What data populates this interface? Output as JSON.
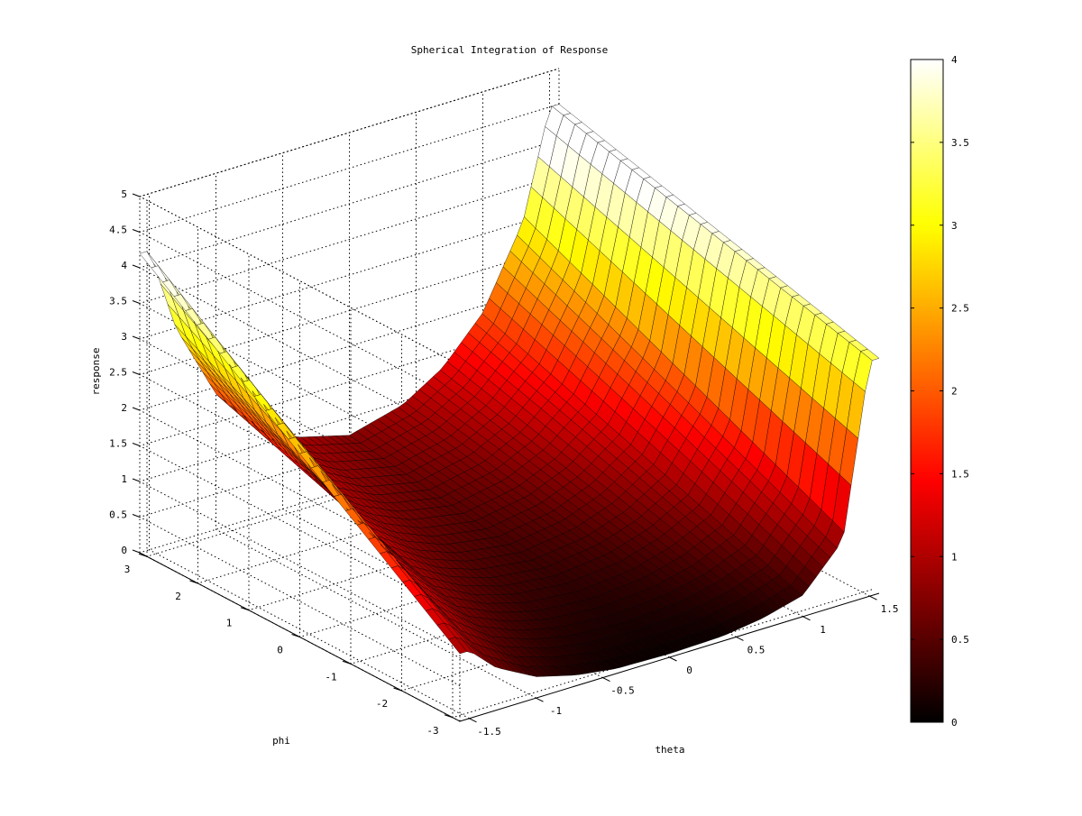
{
  "chart_data": {
    "type": "surface",
    "title": "Spherical Integration of Response",
    "xlabel": "theta",
    "ylabel": "phi",
    "zlabel": "response",
    "xlim": [
      -1.5708,
      1.5708
    ],
    "ylim": [
      -3.1416,
      3.1416
    ],
    "zlim": [
      0,
      5
    ],
    "x_ticks": [
      -1.5,
      -1,
      -0.5,
      0,
      0.5,
      1,
      1.5
    ],
    "x_tick_labels": [
      "-1.5",
      "-1",
      "-0.5",
      "0",
      "0.5",
      "1",
      "1.5"
    ],
    "y_ticks": [
      -3,
      -2,
      -1,
      0,
      1,
      2,
      3
    ],
    "y_tick_labels": [
      "-3",
      "-2",
      "-1",
      "0",
      "1",
      "2",
      "3"
    ],
    "z_ticks": [
      0,
      0.5,
      1,
      1.5,
      2,
      2.5,
      3,
      3.5,
      4,
      4.5,
      5
    ],
    "z_tick_labels": [
      "0",
      "0.5",
      "1",
      "1.5",
      "2",
      "2.5",
      "3",
      "3.5",
      "4",
      "4.5",
      "5"
    ],
    "grid": true,
    "colormap": "hot",
    "colorbar": {
      "range": [
        0,
        4
      ],
      "ticks": [
        0,
        0.5,
        1,
        1.5,
        2,
        2.5,
        3,
        3.5,
        4
      ],
      "tick_labels": [
        "0",
        "0.5",
        "1",
        "1.5",
        "2",
        "2.5",
        "3",
        "3.5",
        "4"
      ],
      "placement": "right"
    },
    "surface_profile": {
      "theta": [
        -1.5,
        -1.3,
        -1.0,
        -0.7,
        -0.4,
        0,
        0.4,
        0.7,
        1.0,
        1.3,
        1.5
      ],
      "response_at_phi_minus_pi": [
        0.95,
        0.6,
        0.3,
        0.15,
        0.07,
        0.05,
        0.07,
        0.15,
        0.3,
        0.9,
        3.3
      ],
      "response_at_phi_plus_pi": [
        4.2,
        3.0,
        1.9,
        1.3,
        0.95,
        0.75,
        0.95,
        1.3,
        1.9,
        3.0,
        4.5
      ]
    }
  }
}
